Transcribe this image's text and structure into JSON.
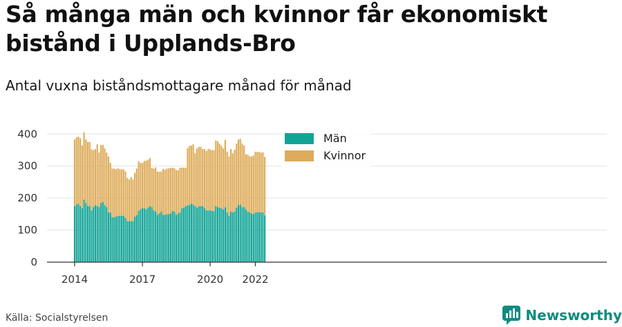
{
  "header": {
    "title": "Så många män och kvinnor får ekonomiskt bistånd i Upplands-Bro",
    "subtitle": "Antal vuxna biståndsmottagare månad för månad"
  },
  "footer": {
    "source": "Källa: Socialstyrelsen",
    "brand": "Newsworthy"
  },
  "colors": {
    "man": "#12a496",
    "kvinna": "#ddac5a",
    "grid": "#e3e3e3",
    "axis": "#333333",
    "brand": "#0d8c7f"
  },
  "chart_data": {
    "type": "bar",
    "stacked": true,
    "ylim": [
      0,
      420
    ],
    "y_ticks": [
      0,
      100,
      200,
      300,
      400
    ],
    "x_ticks": [
      {
        "label": "2014",
        "index": 0
      },
      {
        "label": "2017",
        "index": 36
      },
      {
        "label": "2020",
        "index": 72
      },
      {
        "label": "2022",
        "index": 96
      }
    ],
    "legend": [
      "Män",
      "Kvinnor"
    ],
    "legend_position": "top-center",
    "grid": true,
    "series": [
      {
        "name": "Män",
        "color": "#12a496",
        "values": [
          175,
          180,
          182,
          175,
          168,
          195,
          185,
          175,
          175,
          162,
          172,
          178,
          176,
          172,
          185,
          188,
          178,
          172,
          155,
          155,
          140,
          140,
          142,
          145,
          145,
          145,
          145,
          138,
          128,
          128,
          128,
          128,
          142,
          147,
          160,
          165,
          168,
          168,
          165,
          170,
          175,
          172,
          162,
          158,
          148,
          152,
          158,
          148,
          148,
          150,
          150,
          152,
          160,
          158,
          148,
          152,
          155,
          168,
          170,
          175,
          178,
          178,
          182,
          180,
          175,
          170,
          175,
          175,
          175,
          168,
          162,
          162,
          162,
          160,
          160,
          175,
          172,
          170,
          168,
          165,
          172,
          155,
          145,
          158,
          155,
          158,
          170,
          178,
          180,
          172,
          172,
          165,
          158,
          155,
          152,
          150,
          155,
          156,
          156,
          155,
          155,
          146
        ]
      },
      {
        "name": "Kvinnor",
        "color": "#ddac5a",
        "values": [
          208,
          210,
          210,
          212,
          197,
          210,
          198,
          200,
          200,
          190,
          178,
          175,
          192,
          170,
          180,
          178,
          177,
          170,
          175,
          155,
          152,
          152,
          148,
          148,
          145,
          145,
          145,
          145,
          135,
          130,
          138,
          130,
          137,
          145,
          155,
          145,
          142,
          148,
          152,
          150,
          150,
          122,
          130,
          138,
          135,
          130,
          125,
          143,
          140,
          142,
          143,
          142,
          135,
          135,
          140,
          135,
          140,
          127,
          125,
          120,
          178,
          185,
          182,
          188,
          165,
          185,
          185,
          185,
          178,
          185,
          185,
          192,
          190,
          190,
          190,
          205,
          205,
          200,
          195,
          190,
          210,
          190,
          185,
          195,
          185,
          193,
          200,
          205,
          205,
          198,
          192,
          172,
          178,
          175,
          178,
          183,
          190,
          188,
          188,
          187,
          188,
          183
        ]
      }
    ]
  }
}
